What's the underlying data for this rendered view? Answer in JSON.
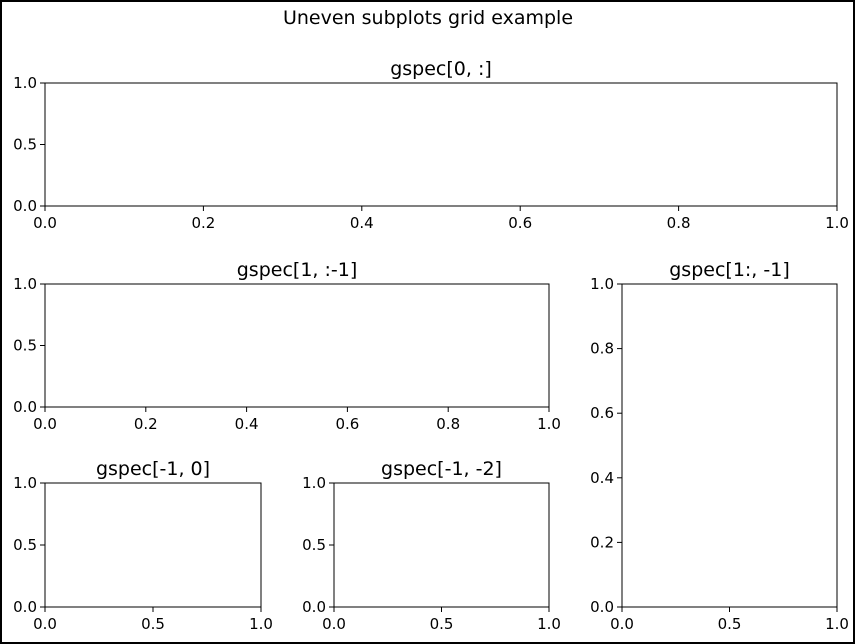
{
  "figure": {
    "suptitle": "Uneven subplots grid example"
  },
  "chart_data": [
    {
      "type": "line",
      "title": "gspec[0, :]",
      "xlim": [
        0.0,
        1.0
      ],
      "ylim": [
        0.0,
        1.0
      ],
      "x_ticks": [
        "0.0",
        "0.2",
        "0.4",
        "0.6",
        "0.8",
        "1.0"
      ],
      "y_ticks": [
        "0.0",
        "0.5",
        "1.0"
      ],
      "series": [],
      "grid": false
    },
    {
      "type": "line",
      "title": "gspec[1, :-1]",
      "xlim": [
        0.0,
        1.0
      ],
      "ylim": [
        0.0,
        1.0
      ],
      "x_ticks": [
        "0.0",
        "0.2",
        "0.4",
        "0.6",
        "0.8",
        "1.0"
      ],
      "y_ticks": [
        "0.0",
        "0.5",
        "1.0"
      ],
      "series": [],
      "grid": false
    },
    {
      "type": "line",
      "title": "gspec[1:, -1]",
      "xlim": [
        0.0,
        1.0
      ],
      "ylim": [
        0.0,
        1.0
      ],
      "x_ticks": [
        "0.0",
        "0.5",
        "1.0"
      ],
      "y_ticks": [
        "0.0",
        "0.2",
        "0.4",
        "0.6",
        "0.8",
        "1.0"
      ],
      "series": [],
      "grid": false
    },
    {
      "type": "line",
      "title": "gspec[-1, 0]",
      "xlim": [
        0.0,
        1.0
      ],
      "ylim": [
        0.0,
        1.0
      ],
      "x_ticks": [
        "0.0",
        "0.5",
        "1.0"
      ],
      "y_ticks": [
        "0.0",
        "0.5",
        "1.0"
      ],
      "series": [],
      "grid": false
    },
    {
      "type": "line",
      "title": "gspec[-1, -2]",
      "xlim": [
        0.0,
        1.0
      ],
      "ylim": [
        0.0,
        1.0
      ],
      "x_ticks": [
        "0.0",
        "0.5",
        "1.0"
      ],
      "y_ticks": [
        "0.0",
        "0.5",
        "1.0"
      ],
      "series": [],
      "grid": false
    }
  ]
}
